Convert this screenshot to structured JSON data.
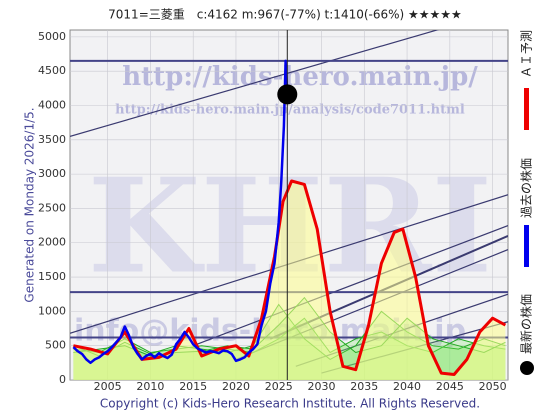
{
  "chart_data": {
    "type": "line",
    "title": "7011=三菱重　c:4162  m:967(-77%)  t:1410(-66%)  ★★★★★",
    "side_note": "Generated on Monday 2026/1/5.",
    "footer": "Copyright (c) Kids-Hero Research Institute. All Rights Reserved.",
    "watermarks": [
      "http://kids-hero.main.jp/",
      "http://kids-hero.main.jp/analysis/code7011.html",
      "KHRI",
      "info@kids-hero.main.jp"
    ],
    "xlim": [
      2000.6,
      2051.8
    ],
    "ylim": [
      0,
      5100
    ],
    "xticks": [
      2005,
      2010,
      2015,
      2020,
      2025,
      2030,
      2035,
      2040,
      2045,
      2050
    ],
    "yticks": [
      0,
      500,
      1000,
      1500,
      2000,
      2500,
      3000,
      3500,
      4000,
      4500,
      5000
    ],
    "grid": true,
    "series": [
      {
        "name": "過去の株価",
        "color": "#0000ee",
        "x": [
          2001,
          2001.5,
          2002,
          2002.5,
          2003,
          2003.5,
          2004,
          2004.5,
          2005,
          2005.5,
          2006,
          2006.5,
          2007,
          2007.5,
          2008,
          2008.5,
          2009,
          2009.5,
          2010,
          2010.5,
          2011,
          2011.5,
          2012,
          2012.5,
          2013,
          2013.5,
          2014,
          2014.5,
          2015,
          2015.5,
          2016,
          2016.5,
          2017,
          2017.5,
          2018,
          2018.5,
          2019,
          2019.5,
          2020,
          2020.5,
          2021,
          2021.5,
          2022,
          2022.5,
          2023,
          2023.5,
          2024,
          2024.5,
          2025,
          2025.3,
          2025.6,
          2025.8,
          2026
        ],
        "values": [
          480,
          420,
          380,
          300,
          250,
          300,
          330,
          380,
          420,
          480,
          550,
          620,
          780,
          650,
          480,
          380,
          300,
          350,
          380,
          330,
          390,
          350,
          320,
          370,
          520,
          600,
          700,
          620,
          520,
          460,
          430,
          400,
          420,
          410,
          390,
          430,
          420,
          380,
          280,
          300,
          330,
          400,
          450,
          520,
          800,
          1000,
          1400,
          1700,
          2300,
          2900,
          3700,
          4650,
          4162
        ]
      },
      {
        "name": "ＡＩ予測",
        "color": "#ee0000",
        "x": [
          2001,
          2003,
          2005,
          2007,
          2009,
          2011,
          2013,
          2014.5,
          2016,
          2018,
          2020,
          2021.5,
          2023,
          2024.5,
          2025.5,
          2026.5,
          2028,
          2029.5,
          2031,
          2032.5,
          2034,
          2035.5,
          2037,
          2038.5,
          2039.5,
          2041,
          2042.5,
          2044,
          2045.5,
          2047,
          2048.5,
          2050,
          2051.5
        ],
        "values": [
          500,
          450,
          380,
          700,
          300,
          330,
          450,
          750,
          350,
          450,
          500,
          350,
          900,
          1800,
          2600,
          2900,
          2850,
          2200,
          1000,
          200,
          150,
          800,
          1700,
          2150,
          2200,
          1500,
          500,
          100,
          80,
          300,
          700,
          900,
          800
        ]
      }
    ],
    "ensemble": [
      {
        "color": "#22aa22",
        "x": [
          2001,
          2004,
          2007,
          2010,
          2013,
          2016,
          2019,
          2022,
          2025,
          2028,
          2031,
          2034,
          2037,
          2040,
          2043,
          2046,
          2049,
          2051.5
        ],
        "values": [
          450,
          400,
          600,
          400,
          450,
          500,
          450,
          400,
          600,
          900,
          400,
          600,
          700,
          500,
          400,
          600,
          500,
          450
        ]
      },
      {
        "color": "#22aa22",
        "x": [
          2001,
          2004,
          2007,
          2010,
          2013,
          2016,
          2019,
          2022,
          2025,
          2028,
          2031,
          2034,
          2037,
          2040,
          2043,
          2046,
          2049,
          2051.5
        ],
        "values": [
          500,
          350,
          550,
          380,
          500,
          450,
          400,
          500,
          1100,
          600,
          300,
          500,
          1000,
          700,
          500,
          450,
          600,
          500
        ]
      },
      {
        "color": "#22aa22",
        "x": [
          2001,
          2004,
          2007,
          2010,
          2013,
          2016,
          2019,
          2022,
          2025,
          2028,
          2031,
          2034,
          2037,
          2040,
          2043,
          2046,
          2049,
          2051.5
        ],
        "values": [
          400,
          450,
          500,
          350,
          400,
          420,
          500,
          450,
          800,
          1200,
          700,
          400,
          500,
          900,
          600,
          500,
          400,
          550
        ]
      }
    ],
    "latest": {
      "name": "最新の株価",
      "color": "#000000",
      "x": 2026,
      "value": 4162
    },
    "hlines": [
      4650,
      1280,
      620
    ],
    "trend_lines": [
      {
        "x": [
          2000.6,
          2051.8
        ],
        "values": [
          3550,
          5400
        ]
      },
      {
        "x": [
          2000.6,
          2051.8
        ],
        "values": [
          680,
          2700
        ]
      },
      {
        "x": [
          2015,
          2051.8
        ],
        "values": [
          500,
          2250
        ]
      },
      {
        "x": [
          2020,
          2051.8
        ],
        "values": [
          300,
          1900
        ]
      },
      {
        "x": [
          2027,
          2051.8
        ],
        "values": [
          200,
          1250
        ]
      },
      {
        "x": [
          2030,
          2051.8
        ],
        "values": [
          100,
          850
        ]
      },
      {
        "x": [
          2024,
          2051.8
        ],
        "values": [
          600,
          2100
        ]
      }
    ]
  }
}
